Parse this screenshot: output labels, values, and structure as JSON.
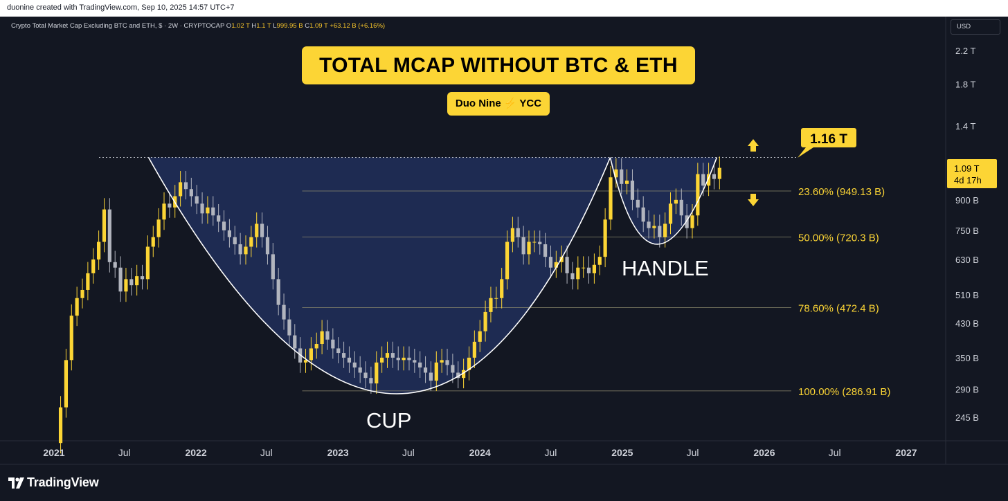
{
  "header": {
    "credit": "duonine created with TradingView.com, Sep 10, 2025 14:57 UTC+7",
    "symbol_line": "Crypto Total Market Cap Excluding BTC and ETH, $ · 2W · CRYPTOCAP",
    "ohlc": [
      {
        "label": "O",
        "value": "1.02 T"
      },
      {
        "label": "H",
        "value": "1.1 T"
      },
      {
        "label": "L",
        "value": "999.95 B"
      },
      {
        "label": "C",
        "value": "1.09 T"
      },
      {
        "label": "",
        "value": "+63.12 B (+6.16%)"
      }
    ],
    "currency": "USD"
  },
  "overlay": {
    "title": "TOTAL MCAP WITHOUT BTC & ETH",
    "author_left": "Duo Nine",
    "author_bolt": "⚡",
    "author_right": "YCC",
    "target_label": "1.16 T",
    "cup_label": "CUP",
    "handle_label": "HANDLE",
    "last_price": "1.09 T",
    "countdown": "4d 17h",
    "footer_brand": "TradingView"
  },
  "chart_data": {
    "type": "candlestick",
    "title": "TOTAL MCAP WITHOUT BTC & ETH",
    "symbol": "Crypto Total Market Cap Excluding BTC and ETH",
    "timeframe": "2W",
    "y_scale": "log",
    "ylim_billions": [
      200,
      2500
    ],
    "y_ticks": [
      {
        "label": "2.2 T",
        "value": 2200
      },
      {
        "label": "1.8 T",
        "value": 1800
      },
      {
        "label": "1.4 T",
        "value": 1400
      },
      {
        "label": "900 B",
        "value": 900
      },
      {
        "label": "750 B",
        "value": 750
      },
      {
        "label": "630 B",
        "value": 630
      },
      {
        "label": "510 B",
        "value": 510
      },
      {
        "label": "430 B",
        "value": 430
      },
      {
        "label": "350 B",
        "value": 350
      },
      {
        "label": "290 B",
        "value": 290
      },
      {
        "label": "245 B",
        "value": 245
      }
    ],
    "x_ticks": [
      {
        "label": "2021",
        "date": "2021-01-01",
        "bold": true
      },
      {
        "label": "Jul",
        "date": "2021-07-01",
        "bold": false
      },
      {
        "label": "2022",
        "date": "2022-01-01",
        "bold": true
      },
      {
        "label": "Jul",
        "date": "2022-07-01",
        "bold": false
      },
      {
        "label": "2023",
        "date": "2023-01-01",
        "bold": true
      },
      {
        "label": "Jul",
        "date": "2023-07-01",
        "bold": false
      },
      {
        "label": "2024",
        "date": "2024-01-01",
        "bold": true
      },
      {
        "label": "Jul",
        "date": "2024-07-01",
        "bold": false
      },
      {
        "label": "2025",
        "date": "2025-01-01",
        "bold": true
      },
      {
        "label": "Jul",
        "date": "2025-07-01",
        "bold": false
      },
      {
        "label": "2026",
        "date": "2026-01-01",
        "bold": true
      },
      {
        "label": "Jul",
        "date": "2026-07-01",
        "bold": false
      },
      {
        "label": "2027",
        "date": "2027-01-01",
        "bold": true
      }
    ],
    "resistance_billions": 1160,
    "fib_levels": [
      {
        "label": "23.60% (949.13 B)",
        "value": 949.13
      },
      {
        "label": "50.00% (720.3 B)",
        "value": 720.3
      },
      {
        "label": "78.60% (472.4 B)",
        "value": 472.4
      },
      {
        "label": "100.00% (286.91 B)",
        "value": 286.91
      }
    ],
    "cup": {
      "start": [
        "2021-09-01",
        1160
      ],
      "bottom": [
        "2023-06-01",
        282
      ],
      "end": [
        "2024-12-01",
        1160
      ]
    },
    "handle": {
      "start": [
        "2024-12-01",
        1160
      ],
      "bottom": [
        "2025-04-01",
        690
      ],
      "end": [
        "2025-09-01",
        1160
      ]
    },
    "close_series_billions": [
      [
        "2021-01-04",
        210
      ],
      [
        "2021-01-18",
        260
      ],
      [
        "2021-02-01",
        345
      ],
      [
        "2021-02-15",
        450
      ],
      [
        "2021-03-01",
        500
      ],
      [
        "2021-03-15",
        525
      ],
      [
        "2021-03-29",
        580
      ],
      [
        "2021-04-12",
        630
      ],
      [
        "2021-04-26",
        700
      ],
      [
        "2021-05-10",
        850
      ],
      [
        "2021-05-24",
        620
      ],
      [
        "2021-06-07",
        600
      ],
      [
        "2021-06-21",
        520
      ],
      [
        "2021-07-05",
        560
      ],
      [
        "2021-07-19",
        540
      ],
      [
        "2021-08-02",
        570
      ],
      [
        "2021-08-16",
        560
      ],
      [
        "2021-08-30",
        680
      ],
      [
        "2021-09-13",
        720
      ],
      [
        "2021-09-27",
        800
      ],
      [
        "2021-10-11",
        880
      ],
      [
        "2021-10-25",
        860
      ],
      [
        "2021-11-08",
        920
      ],
      [
        "2021-11-22",
        1000
      ],
      [
        "2021-12-06",
        960
      ],
      [
        "2021-12-20",
        920
      ],
      [
        "2022-01-03",
        880
      ],
      [
        "2022-01-17",
        830
      ],
      [
        "2022-01-31",
        860
      ],
      [
        "2022-02-14",
        820
      ],
      [
        "2022-02-28",
        790
      ],
      [
        "2022-03-14",
        750
      ],
      [
        "2022-03-28",
        720
      ],
      [
        "2022-04-11",
        690
      ],
      [
        "2022-04-25",
        650
      ],
      [
        "2022-05-09",
        680
      ],
      [
        "2022-05-23",
        720
      ],
      [
        "2022-06-06",
        780
      ],
      [
        "2022-06-20",
        720
      ],
      [
        "2022-07-04",
        650
      ],
      [
        "2022-07-18",
        560
      ],
      [
        "2022-08-01",
        480
      ],
      [
        "2022-08-15",
        440
      ],
      [
        "2022-08-29",
        400
      ],
      [
        "2022-09-12",
        370
      ],
      [
        "2022-09-26",
        340
      ],
      [
        "2022-10-10",
        345
      ],
      [
        "2022-10-24",
        370
      ],
      [
        "2022-11-07",
        380
      ],
      [
        "2022-11-21",
        410
      ],
      [
        "2022-12-05",
        390
      ],
      [
        "2022-12-19",
        370
      ],
      [
        "2023-01-02",
        360
      ],
      [
        "2023-01-16",
        350
      ],
      [
        "2023-01-30",
        340
      ],
      [
        "2023-02-13",
        330
      ],
      [
        "2023-02-27",
        320
      ],
      [
        "2023-03-13",
        310
      ],
      [
        "2023-03-27",
        300
      ],
      [
        "2023-04-10",
        340
      ],
      [
        "2023-04-24",
        350
      ],
      [
        "2023-05-08",
        360
      ],
      [
        "2023-05-22",
        350
      ],
      [
        "2023-06-05",
        345
      ],
      [
        "2023-06-19",
        350
      ],
      [
        "2023-07-03",
        345
      ],
      [
        "2023-07-17",
        340
      ],
      [
        "2023-07-31",
        330
      ],
      [
        "2023-08-14",
        320
      ],
      [
        "2023-08-28",
        305
      ],
      [
        "2023-09-11",
        340
      ],
      [
        "2023-09-25",
        345
      ],
      [
        "2023-10-09",
        335
      ],
      [
        "2023-10-23",
        320
      ],
      [
        "2023-11-06",
        310
      ],
      [
        "2023-11-20",
        325
      ],
      [
        "2023-12-04",
        350
      ],
      [
        "2023-12-18",
        385
      ],
      [
        "2024-01-01",
        410
      ],
      [
        "2024-01-15",
        460
      ],
      [
        "2024-01-29",
        500
      ],
      [
        "2024-02-12",
        500
      ],
      [
        "2024-02-26",
        560
      ],
      [
        "2024-03-11",
        700
      ],
      [
        "2024-03-25",
        760
      ],
      [
        "2024-04-08",
        720
      ],
      [
        "2024-04-22",
        650
      ],
      [
        "2024-05-06",
        700
      ],
      [
        "2024-05-20",
        700
      ],
      [
        "2024-06-03",
        690
      ],
      [
        "2024-06-17",
        640
      ],
      [
        "2024-07-01",
        600
      ],
      [
        "2024-07-15",
        620
      ],
      [
        "2024-07-29",
        640
      ],
      [
        "2024-08-12",
        580
      ],
      [
        "2024-08-26",
        560
      ],
      [
        "2024-09-09",
        600
      ],
      [
        "2024-09-23",
        600
      ],
      [
        "2024-10-07",
        580
      ],
      [
        "2024-10-21",
        610
      ],
      [
        "2024-11-04",
        640
      ],
      [
        "2024-11-18",
        800
      ],
      [
        "2024-12-02",
        1030
      ],
      [
        "2024-12-16",
        1080
      ],
      [
        "2024-12-30",
        990
      ],
      [
        "2025-01-13",
        1010
      ],
      [
        "2025-01-27",
        900
      ],
      [
        "2025-02-10",
        860
      ],
      [
        "2025-02-24",
        790
      ],
      [
        "2025-03-10",
        760
      ],
      [
        "2025-03-24",
        770
      ],
      [
        "2025-04-07",
        720
      ],
      [
        "2025-04-21",
        780
      ],
      [
        "2025-05-05",
        880
      ],
      [
        "2025-05-19",
        900
      ],
      [
        "2025-06-02",
        820
      ],
      [
        "2025-06-16",
        760
      ],
      [
        "2025-06-30",
        820
      ],
      [
        "2025-07-14",
        1050
      ],
      [
        "2025-07-28",
        980
      ],
      [
        "2025-08-11",
        1050
      ],
      [
        "2025-08-25",
        1020
      ],
      [
        "2025-09-08",
        1090
      ]
    ],
    "last_close": "1.09 T"
  },
  "colors": {
    "background": "#131722",
    "bull": "#fcd535",
    "bear": "#b2b5be",
    "cup_fill": "#1f2c55",
    "fib_line": "#8d8a6d",
    "text": "#d1d4dc",
    "label_yellow": "#fcd535",
    "arrow": "#fcd535"
  }
}
